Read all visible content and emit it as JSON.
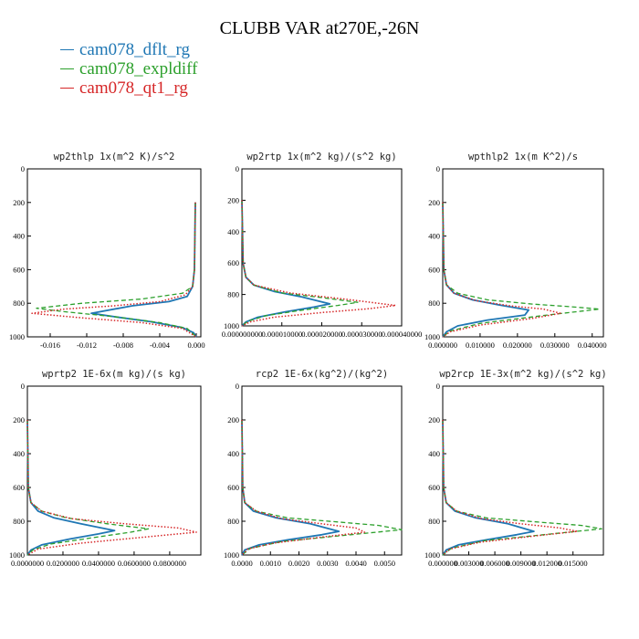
{
  "title": "CLUBB VAR at270E,-26N",
  "colors": {
    "dflt": "#1f77b4",
    "expldiff": "#2ca02c",
    "qt1": "#d62728"
  },
  "legend": [
    {
      "label": "cam078_dflt_rg",
      "color": "#1f77b4",
      "style": "solid"
    },
    {
      "label": "cam078_expldiff",
      "color": "#2ca02c",
      "style": "dashed"
    },
    {
      "label": "cam078_qt1_rg",
      "color": "#d62728",
      "style": "dotted"
    }
  ],
  "chart_data": [
    {
      "type": "line",
      "title": "wp2thlp   1x(m^2 K)/s^2",
      "xlim": [
        -0.0185,
        0.0005
      ],
      "ylim": [
        1000,
        0
      ],
      "y_inverted": true,
      "xticks": [
        "-0.016",
        "-0.012",
        "-0.008",
        "-0.004",
        "0.000"
      ],
      "xtick_values": [
        -0.016,
        -0.012,
        -0.008,
        -0.004,
        0.0
      ],
      "yticks": [
        "0",
        "200",
        "400",
        "600",
        "800",
        "1000"
      ],
      "ytick_values": [
        0,
        200,
        400,
        600,
        800,
        1000
      ],
      "series": [
        {
          "name": "cam078_dflt_rg",
          "x": [
            -0.0001,
            -0.0002,
            -0.0004,
            -0.001,
            -0.003,
            -0.007,
            -0.0115,
            -0.009,
            -0.005,
            -0.0015,
            -0.0003,
            0.0
          ],
          "y": [
            200,
            600,
            700,
            760,
            790,
            815,
            860,
            880,
            910,
            945,
            975,
            1000
          ]
        },
        {
          "name": "cam078_expldiff",
          "x": [
            -0.0001,
            -0.0002,
            -0.0004,
            -0.0015,
            -0.006,
            -0.0125,
            -0.0175,
            -0.0145,
            -0.009,
            -0.004,
            -0.001,
            0.0
          ],
          "y": [
            200,
            600,
            700,
            740,
            775,
            800,
            830,
            850,
            880,
            915,
            950,
            1000
          ]
        },
        {
          "name": "cam078_qt1_rg",
          "x": [
            -0.0001,
            -0.0002,
            -0.0004,
            -0.0012,
            -0.004,
            -0.009,
            -0.0145,
            -0.018,
            -0.013,
            -0.006,
            -0.0015,
            0.0
          ],
          "y": [
            200,
            600,
            700,
            750,
            790,
            815,
            835,
            860,
            885,
            915,
            950,
            1000
          ]
        }
      ]
    },
    {
      "type": "line",
      "title": "wp2rtp   1x(m^2 kg)/(s^2 kg)",
      "xlim": [
        0.0,
        4e-05
      ],
      "ylim": [
        1000,
        0
      ],
      "y_inverted": true,
      "xticks": [
        "0.000000000",
        "0.000010000",
        "0.000020000",
        "0.000030000",
        "0.000040000"
      ],
      "xtick_values": [
        0.0,
        1e-05,
        2e-05,
        3e-05,
        4e-05
      ],
      "yticks": [
        "0",
        "200",
        "400",
        "600",
        "800",
        "1000"
      ],
      "ytick_values": [
        0,
        200,
        400,
        600,
        800,
        1000
      ],
      "series": [
        {
          "name": "cam078_dflt_rg",
          "x": [
            0.0,
            3e-07,
            1e-06,
            3e-06,
            8e-06,
            1.5e-05,
            2.2e-05,
            1.8e-05,
            1.1e-05,
            4e-06,
            1e-06,
            0.0
          ],
          "y": [
            200,
            600,
            690,
            740,
            780,
            815,
            860,
            880,
            910,
            945,
            975,
            1000
          ]
        },
        {
          "name": "cam078_expldiff",
          "x": [
            0.0,
            3e-07,
            1e-06,
            3e-06,
            1e-05,
            2e-05,
            2.9e-05,
            2.4e-05,
            1.5e-05,
            6e-06,
            1.5e-06,
            0.0
          ],
          "y": [
            200,
            600,
            690,
            740,
            790,
            820,
            850,
            870,
            900,
            935,
            970,
            1000
          ]
        },
        {
          "name": "cam078_qt1_rg",
          "x": [
            0.0,
            3e-07,
            1e-06,
            3e-06,
            1.2e-05,
            2.6e-05,
            3.85e-05,
            3.2e-05,
            2e-05,
            8e-06,
            2e-06,
            0.0
          ],
          "y": [
            200,
            600,
            690,
            740,
            790,
            830,
            870,
            890,
            915,
            945,
            975,
            1000
          ]
        }
      ]
    },
    {
      "type": "line",
      "title": "wpthlp2   1x(m K^2)/s",
      "xlim": [
        0.0,
        0.043
      ],
      "ylim": [
        1000,
        0
      ],
      "y_inverted": true,
      "xticks": [
        "0.000000",
        "0.010000",
        "0.020000",
        "0.030000",
        "0.040000"
      ],
      "xtick_values": [
        0.0,
        0.01,
        0.02,
        0.03,
        0.04
      ],
      "yticks": [
        "0",
        "200",
        "400",
        "600",
        "800",
        "1000"
      ],
      "ytick_values": [
        0,
        200,
        400,
        600,
        800,
        1000
      ],
      "series": [
        {
          "name": "cam078_dflt_rg",
          "x": [
            0.0,
            0.0003,
            0.001,
            0.003,
            0.008,
            0.015,
            0.023,
            0.022,
            0.012,
            0.004,
            0.001,
            0.0
          ],
          "y": [
            200,
            600,
            690,
            740,
            780,
            810,
            840,
            870,
            900,
            935,
            970,
            1000
          ]
        },
        {
          "name": "cam078_expldiff",
          "x": [
            0.0,
            0.0003,
            0.001,
            0.004,
            0.012,
            0.024,
            0.034,
            0.042,
            0.028,
            0.01,
            0.002,
            0.0
          ],
          "y": [
            200,
            600,
            690,
            740,
            780,
            805,
            820,
            835,
            870,
            920,
            965,
            1000
          ]
        },
        {
          "name": "cam078_qt1_rg",
          "x": [
            0.0,
            0.0003,
            0.001,
            0.003,
            0.009,
            0.018,
            0.027,
            0.0315,
            0.024,
            0.01,
            0.002,
            0.0
          ],
          "y": [
            200,
            600,
            690,
            740,
            785,
            815,
            835,
            860,
            890,
            930,
            970,
            1000
          ]
        }
      ]
    },
    {
      "type": "line",
      "title": "wprtp2   1E-6x(m kg)/(s kg)",
      "xlim": [
        0.0,
        0.0975
      ],
      "ylim": [
        1000,
        0
      ],
      "y_inverted": true,
      "xticks": [
        "0.0000000",
        "0.0200000",
        "0.0400000",
        "0.0600000",
        "0.0800000"
      ],
      "xtick_values": [
        0.0,
        0.02,
        0.04,
        0.06,
        0.08
      ],
      "yticks": [
        "0",
        "200",
        "400",
        "600",
        "800",
        "1000"
      ],
      "ytick_values": [
        0,
        200,
        400,
        600,
        800,
        1000
      ],
      "series": [
        {
          "name": "cam078_dflt_rg",
          "x": [
            0.0,
            0.0005,
            0.002,
            0.006,
            0.015,
            0.03,
            0.049,
            0.04,
            0.024,
            0.008,
            0.002,
            0.0
          ],
          "y": [
            200,
            600,
            690,
            740,
            780,
            815,
            855,
            875,
            905,
            940,
            970,
            1000
          ]
        },
        {
          "name": "cam078_expldiff",
          "x": [
            0.0,
            0.0005,
            0.002,
            0.008,
            0.022,
            0.045,
            0.068,
            0.058,
            0.035,
            0.013,
            0.003,
            0.0
          ],
          "y": [
            200,
            600,
            690,
            740,
            780,
            815,
            845,
            865,
            900,
            935,
            970,
            1000
          ]
        },
        {
          "name": "cam078_qt1_rg",
          "x": [
            0.0,
            0.0005,
            0.002,
            0.008,
            0.025,
            0.055,
            0.085,
            0.095,
            0.07,
            0.03,
            0.006,
            0.0
          ],
          "y": [
            200,
            600,
            690,
            740,
            785,
            815,
            840,
            865,
            890,
            930,
            965,
            1000
          ]
        }
      ]
    },
    {
      "type": "line",
      "title": "rcp2   1E-6x(kg^2)/(kg^2)",
      "xlim": [
        0.0,
        0.0056
      ],
      "ylim": [
        1000,
        0
      ],
      "y_inverted": true,
      "xticks": [
        "0.0000",
        "0.0010",
        "0.0020",
        "0.0030",
        "0.0040",
        "0.0050"
      ],
      "xtick_values": [
        0.0,
        0.001,
        0.002,
        0.003,
        0.004,
        0.005
      ],
      "yticks": [
        "0",
        "200",
        "400",
        "600",
        "800",
        "1000"
      ],
      "ytick_values": [
        0,
        200,
        400,
        600,
        800,
        1000
      ],
      "series": [
        {
          "name": "cam078_dflt_rg",
          "x": [
            0.0,
            3e-05,
            0.0001,
            0.0004,
            0.0012,
            0.0024,
            0.0034,
            0.0028,
            0.0016,
            0.0006,
            0.0001,
            0.0
          ],
          "y": [
            200,
            600,
            690,
            740,
            780,
            815,
            860,
            880,
            910,
            940,
            970,
            1000
          ]
        },
        {
          "name": "cam078_expldiff",
          "x": [
            0.0,
            3e-05,
            0.0001,
            0.0005,
            0.0016,
            0.0034,
            0.0048,
            0.0056,
            0.0038,
            0.0014,
            0.0003,
            0.0
          ],
          "y": [
            200,
            600,
            690,
            740,
            780,
            805,
            825,
            850,
            880,
            920,
            960,
            1000
          ]
        },
        {
          "name": "cam078_qt1_rg",
          "x": [
            0.0,
            3e-05,
            0.0001,
            0.0005,
            0.0014,
            0.0028,
            0.004,
            0.0043,
            0.003,
            0.0011,
            0.0002,
            0.0
          ],
          "y": [
            200,
            600,
            690,
            740,
            785,
            815,
            840,
            865,
            890,
            930,
            965,
            1000
          ]
        }
      ]
    },
    {
      "type": "line",
      "title": "wp2rcp   1E-3x(m^2 kg)/(s^2 kg)",
      "xlim": [
        0.0,
        0.0185
      ],
      "ylim": [
        1000,
        0
      ],
      "y_inverted": true,
      "xticks": [
        "0.000000",
        "0.003000",
        "0.006000",
        "0.009000",
        "0.012000",
        "0.015000"
      ],
      "xtick_values": [
        0.0,
        0.003,
        0.006,
        0.009,
        0.012,
        0.015
      ],
      "yticks": [
        "0",
        "200",
        "400",
        "600",
        "800",
        "1000"
      ],
      "ytick_values": [
        0,
        200,
        400,
        600,
        800,
        1000
      ],
      "series": [
        {
          "name": "cam078_dflt_rg",
          "x": [
            0.0,
            0.0001,
            0.0004,
            0.0014,
            0.0038,
            0.0075,
            0.0105,
            0.0085,
            0.005,
            0.0018,
            0.0004,
            0.0
          ],
          "y": [
            200,
            600,
            690,
            740,
            780,
            815,
            860,
            880,
            910,
            940,
            970,
            1000
          ]
        },
        {
          "name": "cam078_expldiff",
          "x": [
            0.0,
            0.0001,
            0.0004,
            0.0016,
            0.005,
            0.011,
            0.016,
            0.0183,
            0.0125,
            0.0048,
            0.001,
            0.0
          ],
          "y": [
            200,
            600,
            690,
            740,
            780,
            805,
            825,
            845,
            875,
            915,
            960,
            1000
          ]
        },
        {
          "name": "cam078_qt1_rg",
          "x": [
            0.0,
            0.0001,
            0.0004,
            0.0016,
            0.0045,
            0.009,
            0.0135,
            0.0155,
            0.011,
            0.0042,
            0.0008,
            0.0
          ],
          "y": [
            200,
            600,
            690,
            740,
            785,
            815,
            840,
            860,
            885,
            925,
            965,
            1000
          ]
        }
      ]
    }
  ]
}
